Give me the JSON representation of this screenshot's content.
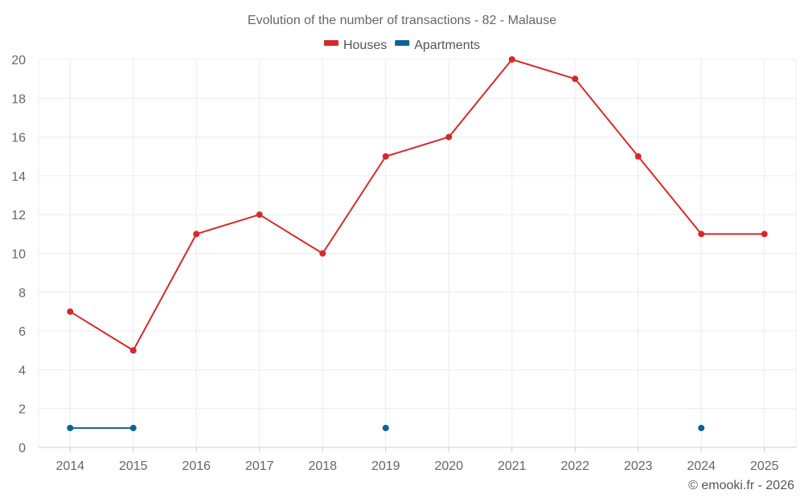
{
  "chart_data": {
    "type": "line",
    "title": "Evolution of the number of transactions - 82 - Malause",
    "xlabel": "",
    "ylabel": "",
    "categories": [
      "2014",
      "2015",
      "2016",
      "2017",
      "2018",
      "2019",
      "2020",
      "2021",
      "2022",
      "2023",
      "2024",
      "2025"
    ],
    "ylim": [
      0,
      20
    ],
    "yticks": [
      0,
      2,
      4,
      6,
      8,
      10,
      12,
      14,
      16,
      18,
      20
    ],
    "grid": true,
    "legend_position": "top-center",
    "series": [
      {
        "name": "Houses",
        "color": "#d42a2a",
        "values": [
          7,
          5,
          11,
          12,
          10,
          15,
          16,
          20,
          19,
          15,
          11,
          11
        ]
      },
      {
        "name": "Apartments",
        "color": "#0e6396",
        "values": [
          1,
          1,
          null,
          null,
          null,
          1,
          null,
          null,
          null,
          null,
          1,
          null
        ]
      }
    ]
  },
  "footer": {
    "credit": "© emooki.fr - 2026"
  }
}
